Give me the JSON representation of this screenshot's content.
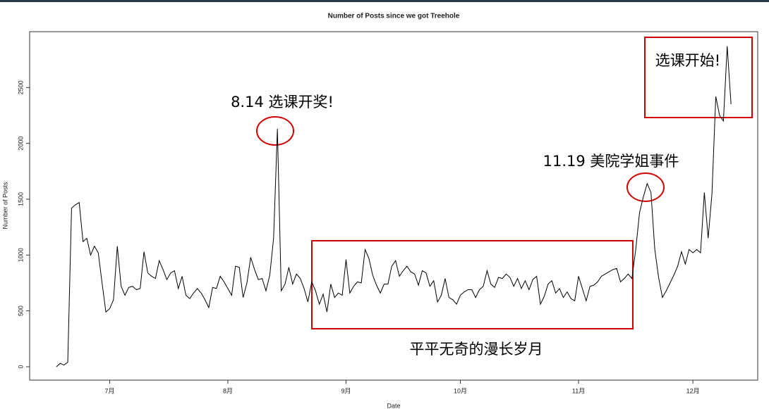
{
  "chart_data": {
    "type": "line",
    "title": "Number of Posts since we got Treehole",
    "x_label": "Date",
    "y_label": "Number of Posts",
    "color": "#000000",
    "x": [
      168,
      169,
      170,
      171,
      172,
      173,
      174,
      175,
      176,
      177,
      178,
      179,
      180,
      181,
      182,
      183,
      184,
      185,
      186,
      187,
      188,
      189,
      190,
      191,
      192,
      193,
      194,
      195,
      196,
      197,
      198,
      199,
      200,
      201,
      202,
      203,
      204,
      205,
      206,
      207,
      208,
      209,
      210,
      211,
      212,
      213,
      214,
      215,
      216,
      217,
      218,
      219,
      220,
      221,
      222,
      223,
      224,
      225,
      226,
      227,
      228,
      229,
      230,
      231,
      232,
      233,
      234,
      235,
      236,
      237,
      238,
      239,
      240,
      241,
      242,
      243,
      244,
      245,
      246,
      247,
      248,
      249,
      250,
      251,
      252,
      253,
      254,
      255,
      256,
      257,
      258,
      259,
      260,
      261,
      262,
      263,
      264,
      265,
      266,
      267,
      268,
      269,
      270,
      271,
      272,
      273,
      274,
      275,
      276,
      277,
      278,
      279,
      280,
      281,
      282,
      283,
      284,
      285,
      286,
      287,
      288,
      289,
      290,
      291,
      292,
      293,
      294,
      295,
      296,
      297,
      298,
      299,
      300,
      301,
      302,
      303,
      304,
      305,
      306,
      307,
      308,
      309,
      310,
      311,
      312,
      313,
      314,
      315,
      316,
      317,
      318,
      319,
      320,
      321,
      322,
      323,
      324,
      325,
      326,
      327,
      328,
      329,
      330,
      331,
      332,
      333,
      334,
      335,
      336,
      337,
      338,
      339,
      340,
      341,
      342,
      343,
      344,
      345
    ],
    "values": [
      0,
      30,
      15,
      40,
      1420,
      1450,
      1470,
      1120,
      1150,
      1000,
      1080,
      1020,
      750,
      490,
      520,
      600,
      1080,
      720,
      640,
      710,
      720,
      690,
      700,
      1030,
      840,
      810,
      790,
      950,
      870,
      780,
      840,
      860,
      700,
      810,
      640,
      610,
      660,
      700,
      660,
      600,
      530,
      710,
      700,
      810,
      760,
      700,
      640,
      900,
      890,
      620,
      750,
      980,
      870,
      780,
      790,
      680,
      820,
      1150,
      2130,
      680,
      740,
      890,
      740,
      830,
      790,
      700,
      580,
      760,
      680,
      560,
      650,
      490,
      740,
      620,
      660,
      640,
      960,
      660,
      720,
      760,
      750,
      1050,
      970,
      820,
      730,
      660,
      740,
      740,
      900,
      950,
      810,
      860,
      900,
      850,
      830,
      730,
      860,
      840,
      720,
      770,
      580,
      640,
      790,
      620,
      600,
      560,
      640,
      670,
      690,
      690,
      620,
      690,
      720,
      860,
      740,
      710,
      800,
      790,
      830,
      800,
      720,
      790,
      700,
      770,
      690,
      780,
      810,
      560,
      630,
      740,
      770,
      660,
      700,
      620,
      670,
      610,
      590,
      810,
      700,
      590,
      720,
      730,
      760,
      810,
      830,
      850,
      870,
      880,
      760,
      790,
      830,
      790,
      1050,
      1380,
      1520,
      1640,
      1560,
      1050,
      800,
      620,
      680,
      750,
      820,
      900,
      1030,
      920,
      1050,
      1020,
      1050,
      1020,
      1560,
      1150,
      1550,
      2420,
      2250,
      2200,
      2870,
      2350
    ],
    "xlim": [
      161,
      352
    ],
    "xticks": [
      {
        "value": 182,
        "label": "7月"
      },
      {
        "value": 213,
        "label": "8月"
      },
      {
        "value": 244,
        "label": "9月"
      },
      {
        "value": 274,
        "label": "10月"
      },
      {
        "value": 305,
        "label": "11月"
      },
      {
        "value": 335,
        "label": "12月"
      }
    ],
    "ylim": [
      -120,
      3000
    ],
    "yticks": [
      0,
      500,
      1000,
      1500,
      2000,
      2500
    ],
    "annotations": [
      "8.14 选课开奖!",
      "11.19 美院学姐事件",
      "选课开始!",
      "平平无奇的漫长岁月"
    ]
  }
}
